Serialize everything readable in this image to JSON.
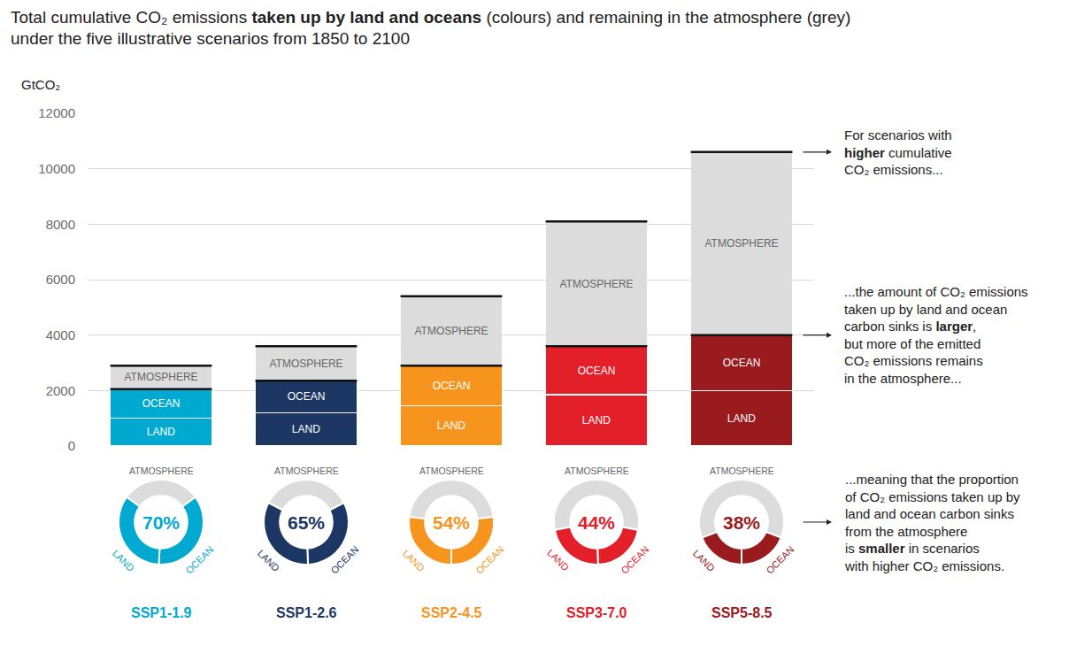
{
  "chart_data": {
    "type": "bar",
    "stacked": true,
    "title_lines": [
      "Total cumulative CO₂ emissions taken up by land and oceans (colours) and remaining in the atmosphere (grey)",
      "under the five illustrative scenarios from 1850 to 2100"
    ],
    "title_emphasis": "taken up by land and oceans",
    "y_label": "GtCO₂",
    "categories": [
      "SSP1-1.9",
      "SSP1-2.6",
      "SSP2-4.5",
      "SSP3-7.0",
      "SSP5-8.5"
    ],
    "series": [
      {
        "name": "LAND",
        "colors": [
          "#00a9cf",
          "#1c3764",
          "#f7941d",
          "#e3202a",
          "#991b1e"
        ],
        "values": [
          1000,
          1200,
          1450,
          1850,
          2000
        ]
      },
      {
        "name": "OCEAN",
        "colors": [
          "#00a9cf",
          "#1c3764",
          "#f7941d",
          "#e3202a",
          "#991b1e"
        ],
        "values": [
          1050,
          1150,
          1450,
          1750,
          2000
        ]
      },
      {
        "name": "ATMOSPHERE",
        "color": "#dcdcdc",
        "values": [
          850,
          1250,
          2500,
          4500,
          6600
        ]
      }
    ],
    "ylim": [
      0,
      12000
    ],
    "yticks": [
      0,
      2000,
      4000,
      6000,
      8000,
      10000,
      12000
    ],
    "grid": true,
    "tick_labels": "y",
    "donut": {
      "type": "pie",
      "values": [
        70,
        65,
        54,
        44,
        38
      ],
      "value_labels": [
        "70%",
        "65%",
        "54%",
        "44%",
        "38%"
      ]
    },
    "annotations": [
      {
        "lines": [
          "For scenarios with",
          "higher cumulative",
          "CO₂ emissions..."
        ],
        "emphasis": "higher"
      },
      {
        "lines": [
          "...the amount of CO₂ emissions",
          "taken up by land and ocean",
          "carbon sinks is larger,",
          "but more of the emitted",
          "CO₂ emissions remains",
          "in the atmosphere..."
        ],
        "emphasis": "larger"
      },
      {
        "lines": [
          "...meaning that the proportion",
          "of CO₂ emissions taken up by",
          "land and ocean carbon sinks",
          "from the atmosphere",
          "is smaller in scenarios",
          "with higher CO₂ emissions."
        ],
        "emphasis": "smaller"
      }
    ]
  }
}
